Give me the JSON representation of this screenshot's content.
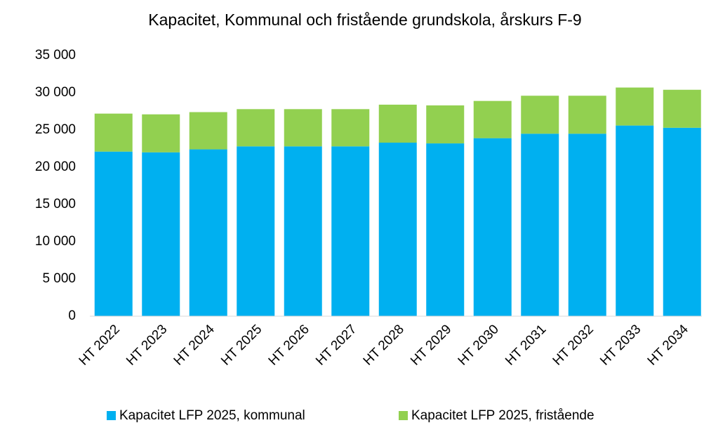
{
  "chart_data": {
    "type": "stacked_bar",
    "title": "Kapacitet, Kommunal och fristående grundskola, årskurs F-9",
    "categories": [
      "HT 2022",
      "HT 2023",
      "HT 2024",
      "HT 2025",
      "HT 2026",
      "HT 2027",
      "HT 2028",
      "HT 2029",
      "HT 2030",
      "HT 2031",
      "HT 2032",
      "HT 2033",
      "HT 2034"
    ],
    "series": [
      {
        "name": "Kapacitet LFP 2025, kommunal",
        "color": "#00b0f0",
        "values": [
          22100,
          22000,
          22400,
          22800,
          22800,
          22800,
          23300,
          23200,
          23900,
          24500,
          24500,
          25600,
          25300
        ]
      },
      {
        "name": "Kapacitet LFP 2025, fristående",
        "color": "#92d050",
        "values": [
          5100,
          5100,
          5000,
          5000,
          5000,
          5000,
          5100,
          5100,
          5000,
          5100,
          5100,
          5100,
          5100
        ]
      }
    ],
    "ylim": [
      0,
      35000
    ],
    "yticks": [
      0,
      {
        "value": 5000,
        "label": "5 000"
      },
      {
        "value": 10000,
        "label": "10 000"
      },
      {
        "value": 15000,
        "label": "15 000"
      },
      {
        "value": 20000,
        "label": "20 000"
      },
      {
        "value": 25000,
        "label": "25 000"
      },
      {
        "value": 30000,
        "label": "30 000"
      },
      {
        "value": 35000,
        "label": "35 000"
      }
    ],
    "grid": false
  }
}
